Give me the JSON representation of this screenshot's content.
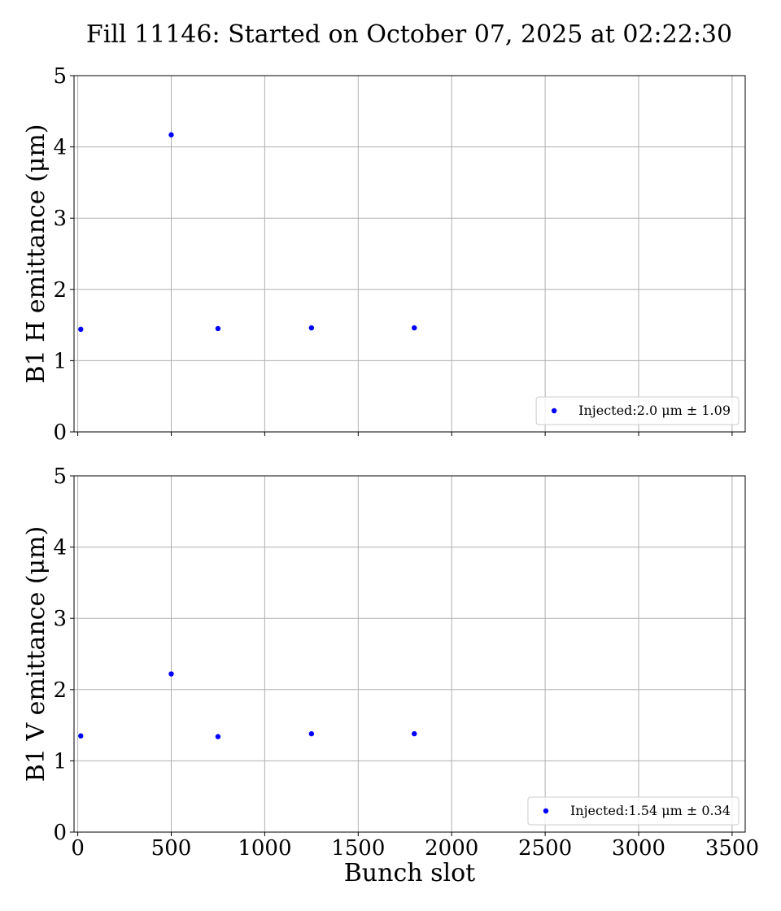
{
  "figure": {
    "title": "Fill 11146: Started on October 07, 2025 at 02:22:30"
  },
  "chart_data": [
    {
      "type": "scatter",
      "xlabel": "",
      "ylabel": "B1 H emittance (μm)",
      "xlim": [
        -20,
        3570
      ],
      "ylim": [
        0,
        5
      ],
      "xticks": [
        0,
        500,
        1000,
        1500,
        2000,
        2500,
        3000,
        3500
      ],
      "yticks": [
        0,
        1,
        2,
        3,
        4,
        5
      ],
      "show_xtick_labels": false,
      "grid": true,
      "legend_position": "lower-right",
      "series": [
        {
          "name": "Injected:2.0 μm ± 1.09",
          "color": "#0000ff",
          "x": [
            16,
            500,
            750,
            1250,
            1800
          ],
          "y": [
            1.44,
            4.17,
            1.45,
            1.46,
            1.46
          ]
        }
      ]
    },
    {
      "type": "scatter",
      "xlabel": "Bunch slot",
      "ylabel": "B1 V emittance (μm)",
      "xlim": [
        -20,
        3570
      ],
      "ylim": [
        0,
        5
      ],
      "xticks": [
        0,
        500,
        1000,
        1500,
        2000,
        2500,
        3000,
        3500
      ],
      "yticks": [
        0,
        1,
        2,
        3,
        4,
        5
      ],
      "show_xtick_labels": true,
      "grid": true,
      "legend_position": "lower-right",
      "series": [
        {
          "name": "Injected:1.54 μm ± 0.34",
          "color": "#0000ff",
          "x": [
            16,
            500,
            750,
            1250,
            1800
          ],
          "y": [
            1.35,
            2.22,
            1.34,
            1.38,
            1.38
          ]
        }
      ]
    }
  ]
}
